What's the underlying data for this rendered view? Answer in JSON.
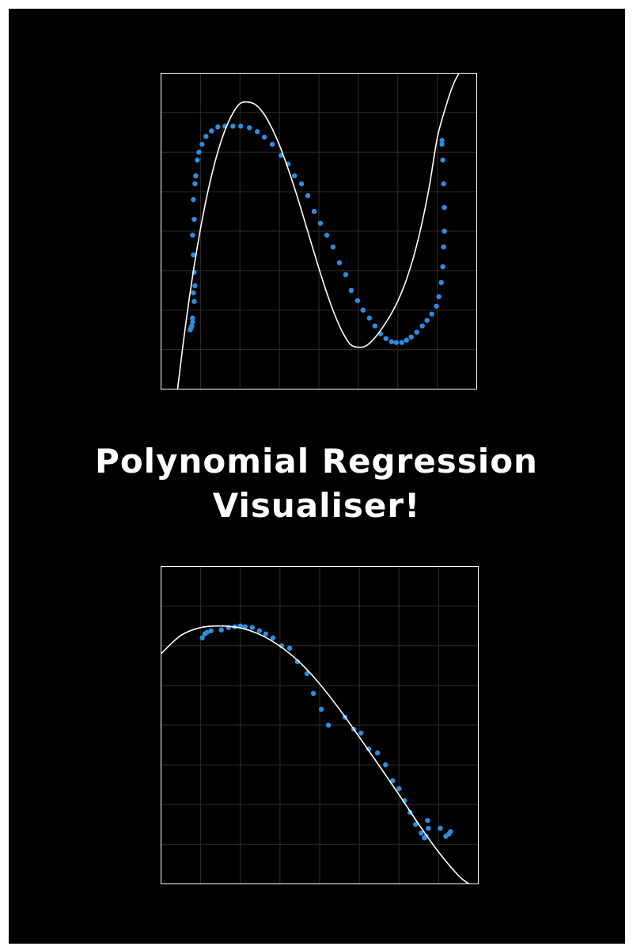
{
  "title": {
    "line1": "Polynomial Regression",
    "line2": "Visualiser!"
  },
  "colors": {
    "background": "#000000",
    "frame": "#ffffff",
    "points": "#2e8de0",
    "curve": "#ffffff",
    "grid": "#2e2e2e"
  },
  "chart_data": [
    {
      "type": "scatter",
      "title": "",
      "xlabel": "",
      "ylabel": "",
      "grid": true,
      "xlim": [
        0,
        8
      ],
      "ylim": [
        0,
        8
      ],
      "series": [
        {
          "kind": "points",
          "x": [
            0.74,
            0.76,
            0.78,
            0.8,
            0.8,
            0.84,
            0.82,
            0.86,
            0.84,
            0.82,
            0.8,
            0.84,
            0.82,
            0.86,
            0.88,
            0.92,
            0.96,
            1.04,
            1.14,
            1.28,
            1.44,
            1.62,
            1.82,
            2.02,
            2.24,
            2.44,
            2.62,
            2.82,
            3.04,
            3.22,
            3.38,
            3.56,
            3.72,
            3.88,
            4.04,
            4.2,
            4.36,
            4.52,
            4.68,
            4.82,
            4.98,
            5.12,
            5.28,
            5.42,
            5.56,
            5.7,
            5.84,
            5.96,
            6.1,
            6.22,
            6.34,
            6.48,
            6.62,
            6.74,
            6.86,
            6.98,
            7.04,
            7.1,
            7.14,
            7.16,
            7.18,
            7.18,
            7.16,
            7.14,
            7.12,
            7.12
          ],
          "y": [
            1.5,
            1.55,
            1.6,
            1.7,
            1.8,
            2.22,
            2.44,
            2.62,
            2.96,
            3.4,
            3.9,
            4.3,
            4.8,
            5.2,
            5.4,
            5.8,
            6.0,
            6.2,
            6.4,
            6.54,
            6.64,
            6.66,
            6.66,
            6.66,
            6.62,
            6.52,
            6.38,
            6.2,
            5.92,
            5.7,
            5.4,
            5.2,
            4.9,
            4.5,
            4.2,
            3.9,
            3.6,
            3.2,
            2.9,
            2.5,
            2.24,
            2.0,
            1.8,
            1.6,
            1.4,
            1.28,
            1.2,
            1.18,
            1.18,
            1.24,
            1.32,
            1.44,
            1.6,
            1.74,
            1.9,
            2.1,
            2.34,
            2.7,
            3.1,
            3.6,
            4.0,
            4.6,
            5.2,
            5.8,
            6.2,
            6.3
          ]
        },
        {
          "kind": "curve",
          "x": [
            0.42,
            0.6,
            0.8,
            1.0,
            1.2,
            1.4,
            1.6,
            1.8,
            2.0,
            2.2,
            2.4,
            2.6,
            2.8,
            3.0,
            3.2,
            3.4,
            3.6,
            3.8,
            4.0,
            4.2,
            4.4,
            4.6,
            4.8,
            5.0,
            5.2,
            5.4,
            5.6,
            5.8,
            6.0,
            6.2,
            6.4,
            6.6,
            6.8,
            7.0,
            7.2,
            7.4,
            7.55
          ],
          "y": [
            0.0,
            1.45,
            2.86,
            4.06,
            5.06,
            5.87,
            6.5,
            6.95,
            7.23,
            7.27,
            7.2,
            6.98,
            6.63,
            6.18,
            5.64,
            5.04,
            4.39,
            3.72,
            3.06,
            2.44,
            1.89,
            1.44,
            1.13,
            1.06,
            1.1,
            1.28,
            1.54,
            1.85,
            2.23,
            2.72,
            3.35,
            4.15,
            5.14,
            6.36,
            7.1,
            7.7,
            8.0
          ]
        }
      ]
    },
    {
      "type": "scatter",
      "title": "",
      "xlabel": "",
      "ylabel": "",
      "grid": true,
      "xlim": [
        0,
        8
      ],
      "ylim": [
        0,
        8
      ],
      "series": [
        {
          "kind": "points",
          "x": [
            1.04,
            1.1,
            1.16,
            1.26,
            1.52,
            1.7,
            1.86,
            2.0,
            2.12,
            2.3,
            2.48,
            2.64,
            2.82,
            3.04,
            3.24,
            3.44,
            3.68,
            3.84,
            4.04,
            4.22,
            4.64,
            4.86,
            5.04,
            5.24,
            5.46,
            5.66,
            5.84,
            6.0,
            6.14,
            6.28,
            6.42,
            6.56,
            6.64,
            6.68,
            6.72,
            6.74,
            7.04,
            7.18,
            7.26,
            7.3
          ],
          "y": [
            6.2,
            6.3,
            6.34,
            6.38,
            6.4,
            6.46,
            6.48,
            6.5,
            6.48,
            6.46,
            6.38,
            6.3,
            6.2,
            6.0,
            5.94,
            5.6,
            5.3,
            4.8,
            4.4,
            4.0,
            4.2,
            3.9,
            3.8,
            3.4,
            3.3,
            3.0,
            2.6,
            2.4,
            2.1,
            1.8,
            1.5,
            1.28,
            1.16,
            1.2,
            1.6,
            1.4,
            1.4,
            1.2,
            1.26,
            1.32
          ]
        },
        {
          "kind": "curve",
          "x": [
            0.0,
            0.5,
            1.0,
            1.5,
            2.0,
            2.5,
            3.0,
            3.5,
            4.0,
            4.5,
            5.0,
            5.5,
            6.0,
            6.5,
            7.0,
            7.5,
            7.76
          ],
          "y": [
            5.8,
            6.26,
            6.46,
            6.5,
            6.45,
            6.28,
            5.99,
            5.58,
            5.04,
            4.4,
            3.7,
            2.98,
            2.25,
            1.5,
            0.8,
            0.21,
            0.0
          ]
        }
      ]
    }
  ]
}
